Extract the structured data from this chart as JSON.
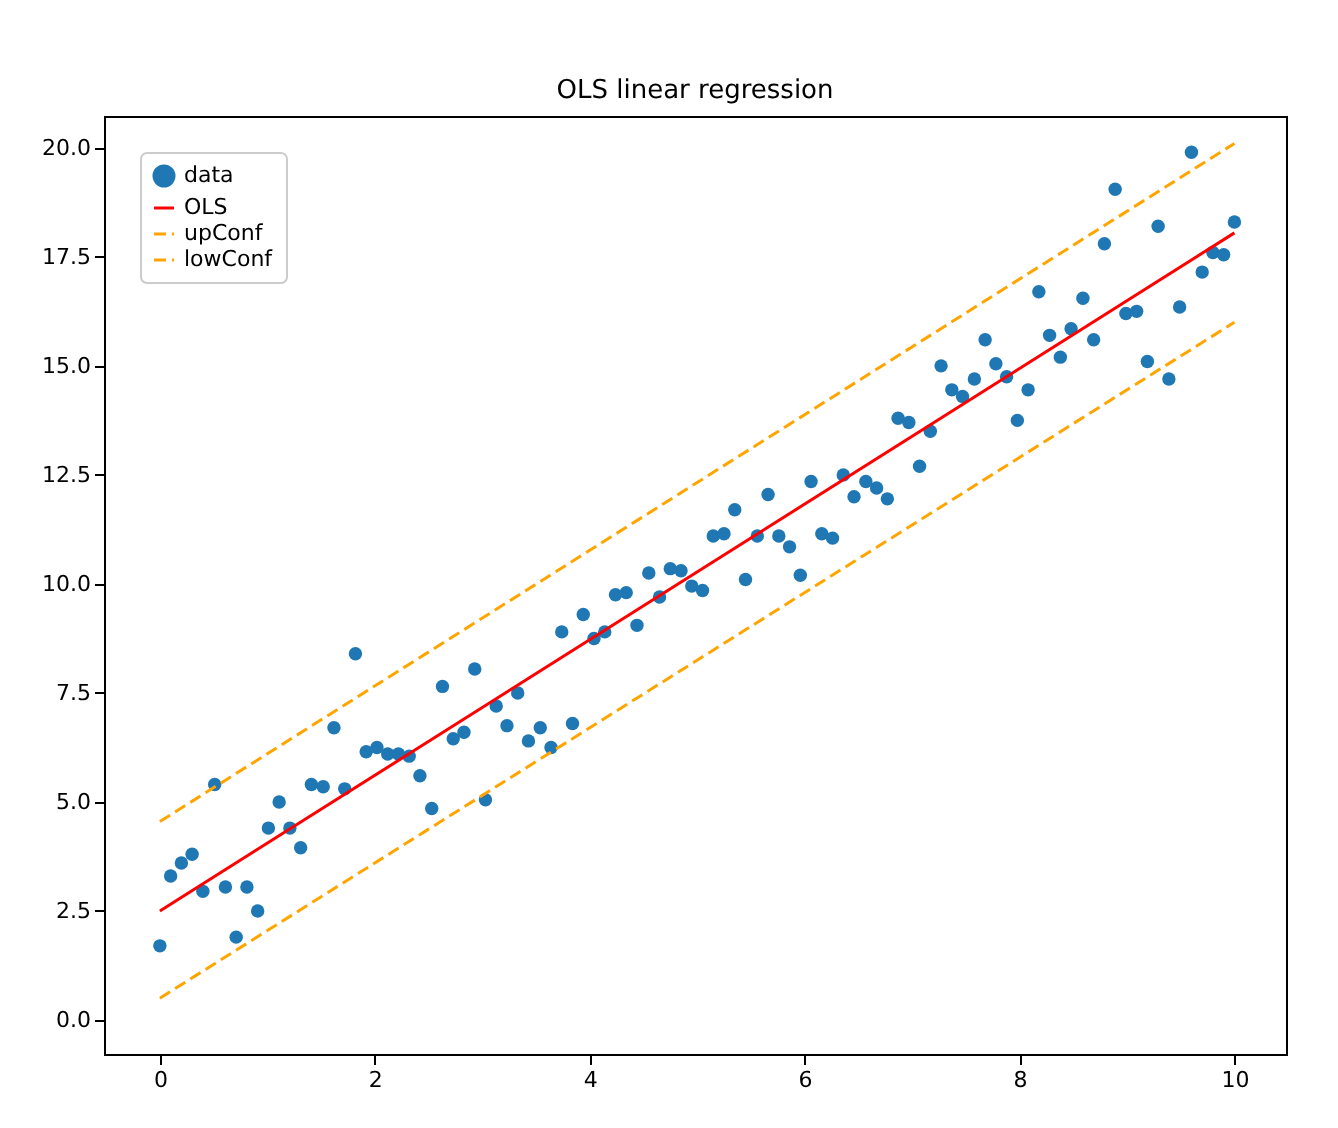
{
  "chart_data": {
    "type": "scatter",
    "title": "OLS linear regression",
    "legend": "top left",
    "grid": false,
    "xlim": [
      -0.52,
      10.48
    ],
    "ylim": [
      -0.78,
      20.73
    ],
    "xticks": [
      0,
      2,
      4,
      6,
      8,
      10
    ],
    "yticks": [
      {
        "value": 0,
        "label": "0.0"
      },
      {
        "value": 2.5,
        "label": "2.5"
      },
      {
        "value": 5,
        "label": "5.0"
      },
      {
        "value": 7.5,
        "label": "7.5"
      },
      {
        "value": 10,
        "label": "10.0"
      },
      {
        "value": 12.5,
        "label": "12.5"
      },
      {
        "value": 15,
        "label": "15.0"
      },
      {
        "value": 17.5,
        "label": "17.5"
      },
      {
        "value": 20,
        "label": "20.0"
      }
    ],
    "series": [
      {
        "name": "data",
        "marker": "circle",
        "color": "#1f77b4",
        "x": [
          0,
          0.1,
          0.2,
          0.3,
          0.4,
          0.51,
          0.61,
          0.71,
          0.81,
          0.91,
          1.01,
          1.11,
          1.21,
          1.31,
          1.41,
          1.52,
          1.62,
          1.72,
          1.82,
          1.92,
          2.02,
          2.12,
          2.22,
          2.32,
          2.42,
          2.53,
          2.63,
          2.73,
          2.83,
          2.93,
          3.03,
          3.13,
          3.23,
          3.33,
          3.43,
          3.54,
          3.64,
          3.74,
          3.84,
          3.94,
          4.04,
          4.14,
          4.24,
          4.34,
          4.44,
          4.55,
          4.65,
          4.75,
          4.85,
          4.95,
          5.05,
          5.15,
          5.25,
          5.35,
          5.45,
          5.56,
          5.66,
          5.76,
          5.86,
          5.96,
          6.06,
          6.16,
          6.26,
          6.36,
          6.46,
          6.57,
          6.67,
          6.77,
          6.87,
          6.97,
          7.07,
          7.17,
          7.27,
          7.37,
          7.47,
          7.58,
          7.68,
          7.78,
          7.88,
          7.98,
          8.08,
          8.18,
          8.28,
          8.38,
          8.48,
          8.59,
          8.69,
          8.79,
          8.89,
          8.99,
          9.09,
          9.19,
          9.29,
          9.39,
          9.49,
          9.6,
          9.7,
          9.8,
          9.9,
          10
        ],
        "values": [
          1.7,
          3.3,
          3.6,
          3.8,
          2.95,
          5.4,
          3.05,
          1.9,
          3.05,
          2.5,
          4.4,
          5.0,
          4.4,
          3.95,
          5.4,
          5.35,
          6.7,
          5.3,
          8.4,
          6.15,
          6.25,
          6.1,
          6.1,
          6.05,
          5.6,
          4.85,
          7.65,
          6.45,
          6.6,
          8.05,
          5.05,
          7.2,
          6.75,
          7.5,
          6.4,
          6.7,
          6.25,
          8.9,
          6.8,
          9.3,
          8.75,
          8.9,
          9.75,
          9.8,
          9.05,
          10.25,
          9.7,
          10.35,
          10.3,
          9.95,
          9.85,
          11.1,
          11.15,
          11.7,
          10.1,
          11.1,
          12.05,
          11.1,
          10.85,
          10.2,
          12.35,
          11.15,
          11.05,
          12.5,
          12.0,
          12.35,
          12.2,
          11.95,
          13.8,
          13.7,
          12.7,
          13.5,
          15.0,
          14.45,
          14.3,
          14.7,
          15.6,
          15.05,
          14.75,
          13.75,
          14.45,
          16.7,
          15.7,
          15.2,
          15.85,
          16.55,
          15.6,
          17.8,
          19.05,
          16.2,
          16.25,
          15.1,
          18.2,
          14.7,
          16.35,
          19.9,
          17.15,
          17.6,
          17.55,
          18.3
        ]
      },
      {
        "name": "OLS",
        "type": "line",
        "line_style": "solid",
        "color": "#ff0000",
        "x": [
          0,
          10
        ],
        "values": [
          2.5,
          18.05
        ]
      },
      {
        "name": "upConf",
        "type": "line",
        "line_style": "dashed",
        "color": "#ffa500",
        "x": [
          0,
          10
        ],
        "values": [
          4.55,
          20.1
        ]
      },
      {
        "name": "lowConf",
        "type": "line",
        "line_style": "dashed",
        "color": "#ffa500",
        "x": [
          0,
          10
        ],
        "values": [
          0.5,
          16.0
        ]
      }
    ]
  }
}
